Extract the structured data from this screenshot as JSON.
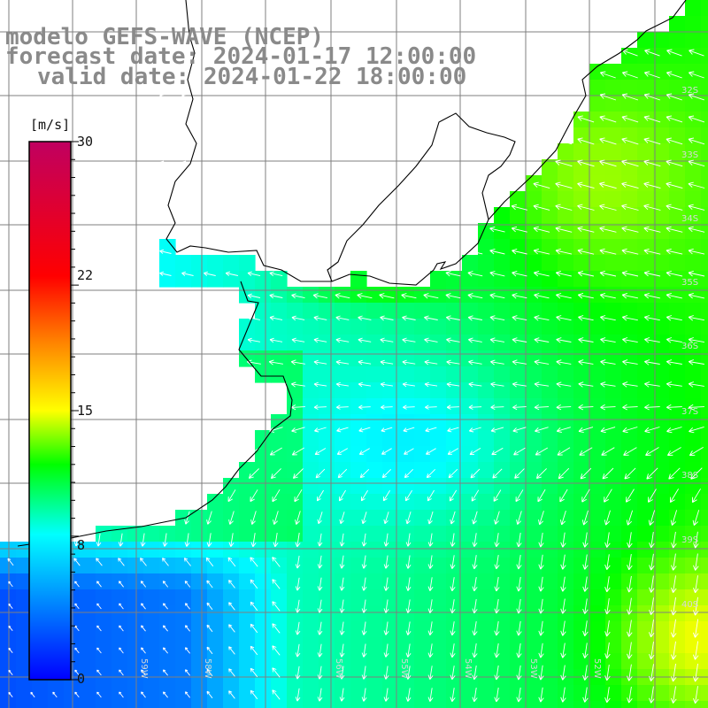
{
  "titles": {
    "line1": "modelo GEFS-WAVE (NCEP)",
    "line2": "forecast date: 2024-01-17 12:00:00",
    "line3": "valid date: 2024-01-22 18:00:00"
  },
  "colorbar": {
    "unit": "[m/s]",
    "min": 0,
    "max": 30,
    "ticks": [
      "30",
      "22",
      "15",
      "8",
      "0"
    ],
    "colors": [
      "#0000ff",
      "#00ffff",
      "#00ff00",
      "#ffff00",
      "#ff8000",
      "#ff0000",
      "#c00060"
    ]
  },
  "map": {
    "variable": "wind speed",
    "units": "m/s",
    "lat_labels": [
      "32S",
      "33S",
      "34S",
      "35S",
      "36S",
      "37S",
      "38S",
      "39S",
      "40S"
    ],
    "lon_labels": [
      "59W",
      "58W",
      "56W",
      "55W",
      "54W",
      "53W",
      "52W"
    ],
    "land_color": "#ffffff",
    "grid_color": "#7f7f7f",
    "arrow_color": "#ffffff"
  }
}
